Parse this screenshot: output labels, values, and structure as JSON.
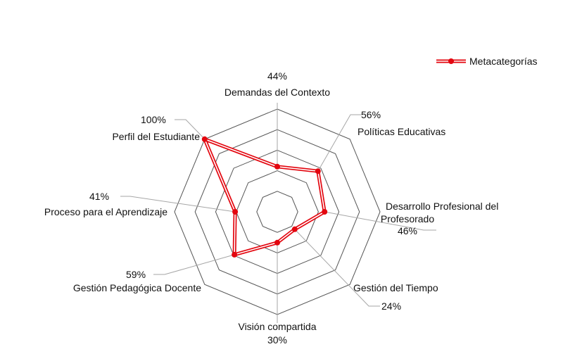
{
  "chart_data": {
    "type": "radar",
    "title": "",
    "legend": {
      "position": "top-right",
      "series_name": "Metacategorías"
    },
    "colors": {
      "series": "#e3060f",
      "grid": "#555555",
      "leader": "#a6a6a6"
    },
    "r_range": [
      0,
      100
    ],
    "grid_levels": [
      20,
      40,
      60,
      80,
      100
    ],
    "categories": [
      "Demandas del Contexto",
      "Políticas Educativas",
      "Desarrollo Profesional del Profesorado",
      "Gestión del Tiempo",
      "Visión compartida",
      "Gestión Pedagógica Docente",
      "Proceso para el Aprendizaje",
      "Perfil del Estudiante"
    ],
    "series": [
      {
        "name": "Metacategorías",
        "values": [
          44,
          56,
          46,
          24,
          30,
          59,
          41,
          100
        ],
        "data_labels": [
          "44%",
          "56%",
          "46%",
          "24%",
          "30%",
          "59%",
          "41%",
          "100%"
        ]
      }
    ]
  }
}
